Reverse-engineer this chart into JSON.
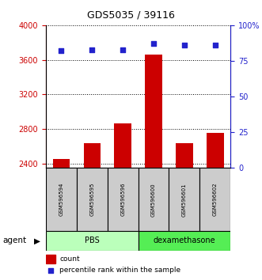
{
  "title": "GDS5035 / 39116",
  "samples": [
    "GSM596594",
    "GSM596595",
    "GSM596596",
    "GSM596600",
    "GSM596601",
    "GSM596602"
  ],
  "counts": [
    2450,
    2640,
    2870,
    3660,
    2640,
    2760
  ],
  "percentiles": [
    82,
    83,
    83,
    87,
    86,
    86
  ],
  "ylim_left": [
    2350,
    4000
  ],
  "ylim_right": [
    0,
    100
  ],
  "yticks_left": [
    2400,
    2800,
    3200,
    3600,
    4000
  ],
  "yticks_right": [
    0,
    25,
    50,
    75,
    100
  ],
  "bar_color": "#cc0000",
  "dot_color": "#2222cc",
  "bar_bottom": 2350,
  "agent_label": "agent",
  "legend_count_label": "count",
  "legend_percentile_label": "percentile rank within the sample",
  "left_axis_color": "#cc0000",
  "right_axis_color": "#2222cc",
  "grid_color": "#000000",
  "sample_box_color": "#cccccc",
  "pbs_color": "#bbffbb",
  "dex_color": "#55ee55",
  "fig_width": 3.31,
  "fig_height": 3.54,
  "dpi": 100
}
